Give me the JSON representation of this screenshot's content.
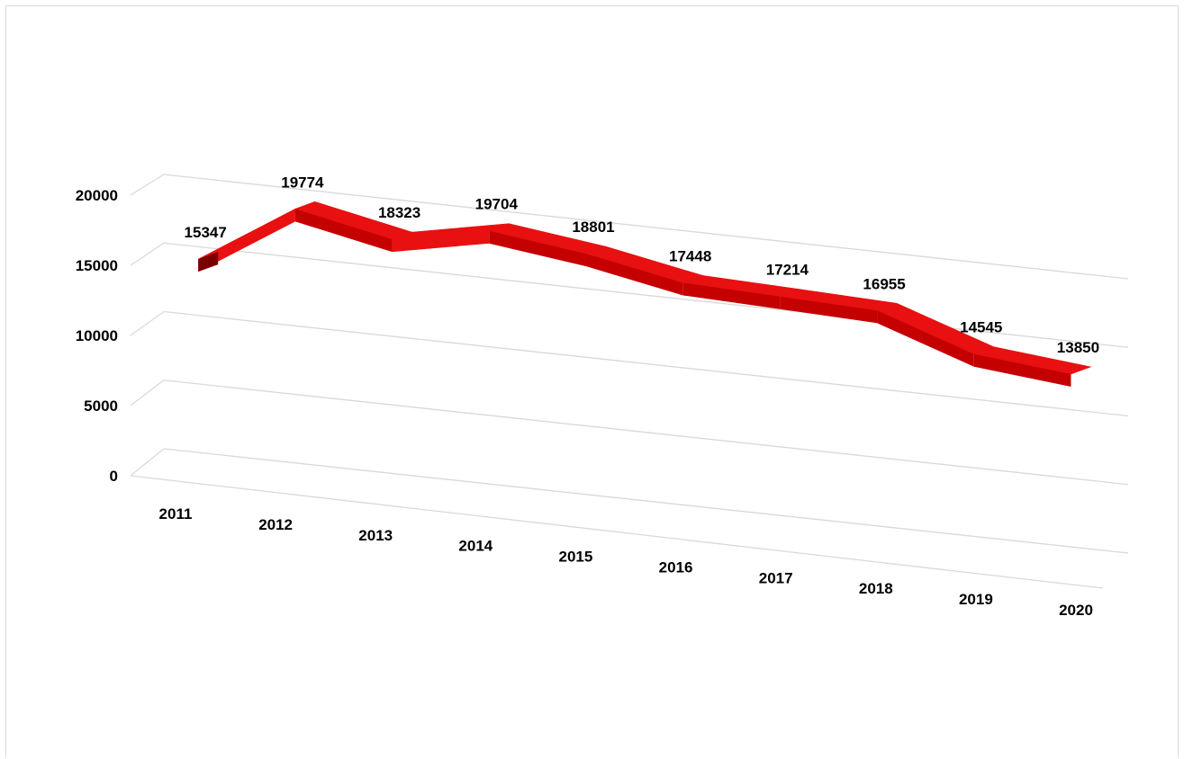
{
  "chart_data": {
    "type": "line",
    "style": "3d-ribbon",
    "title": "",
    "xlabel": "",
    "ylabel": "",
    "categories": [
      "2011",
      "2012",
      "2013",
      "2014",
      "2015",
      "2016",
      "2017",
      "2018",
      "2019",
      "2020"
    ],
    "series": [
      {
        "values": [
          15347,
          19774,
          18323,
          19704,
          18801,
          17448,
          17214,
          16955,
          14545,
          13850
        ]
      }
    ],
    "data_labels": [
      "15347",
      "19774",
      "18323",
      "19704",
      "18801",
      "17448",
      "17214",
      "16955",
      "14545",
      "13850"
    ],
    "y_ticks": [
      0,
      5000,
      10000,
      15000,
      20000
    ],
    "ylim": [
      0,
      20000
    ],
    "grid": true,
    "legend": "none",
    "colors": {
      "ribbon_top": "#e81010",
      "ribbon_front": "#c40000",
      "ribbon_side": "#7a0000",
      "gridline": "#d9d9d9"
    }
  }
}
